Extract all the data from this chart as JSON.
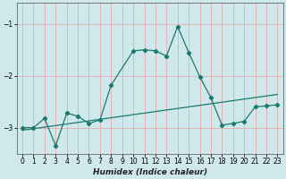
{
  "xlabel": "Humidex (Indice chaleur)",
  "x_values": [
    0,
    1,
    2,
    3,
    4,
    5,
    6,
    7,
    8,
    9,
    10,
    11,
    12,
    13,
    14,
    15,
    16,
    17,
    18,
    19,
    20,
    21,
    22,
    23
  ],
  "line1_y": [
    -3.0,
    -3.0,
    -2.82,
    -3.35,
    -2.72,
    -2.78,
    -2.92,
    -2.85,
    -2.18,
    null,
    -1.52,
    -1.5,
    -1.52,
    -1.62,
    -1.05,
    -1.55,
    -2.02,
    -2.42,
    -2.95,
    -2.92,
    -2.88,
    -2.6,
    -2.58,
    -2.56
  ],
  "line3_y": [
    -3.05,
    -3.02,
    -2.99,
    -2.96,
    -2.93,
    -2.9,
    -2.87,
    -2.84,
    -2.81,
    -2.78,
    -2.75,
    -2.72,
    -2.69,
    -2.66,
    -2.63,
    -2.6,
    -2.57,
    -2.54,
    -2.51,
    -2.48,
    -2.45,
    -2.42,
    -2.39,
    -2.36
  ],
  "color_main": "#1a7a6e",
  "bg_color": "#cfe8ec",
  "grid_color": "#e8a0a0",
  "ylim": [
    -3.5,
    -0.6
  ],
  "xlim": [
    -0.5,
    23.5
  ],
  "yticks": [
    -3,
    -2,
    -1
  ],
  "xticks": [
    0,
    1,
    2,
    3,
    4,
    5,
    6,
    7,
    8,
    9,
    10,
    11,
    12,
    13,
    14,
    15,
    16,
    17,
    18,
    19,
    20,
    21,
    22,
    23
  ],
  "xlabel_fontsize": 6.5,
  "tick_fontsize": 5.5,
  "marker": "D",
  "markersize": 2.2,
  "linewidth": 0.9
}
